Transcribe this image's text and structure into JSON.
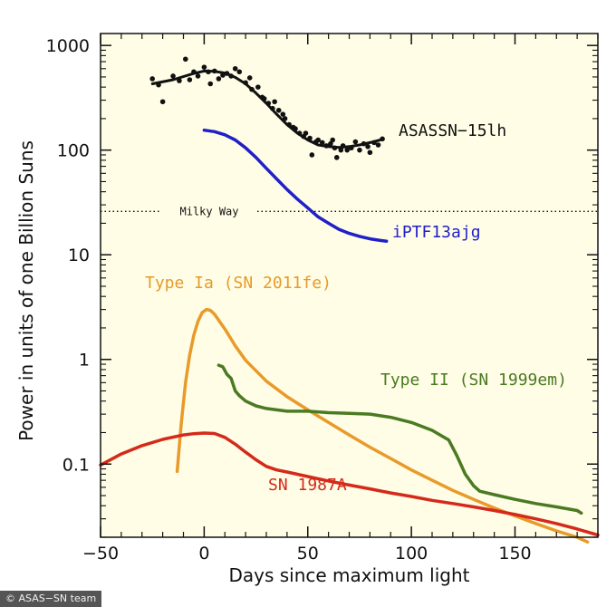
{
  "chart_data": {
    "type": "line",
    "title": "",
    "xlabel": "Days since maximum light",
    "ylabel": "Power in units of one Billion Suns",
    "xlim": [
      -50,
      190
    ],
    "ylim": [
      0.02,
      1300
    ],
    "yscale": "log",
    "grid": false,
    "background": "#fffde6",
    "x_ticks": [
      -50,
      0,
      50,
      100,
      150
    ],
    "x_tick_labels": [
      "−50",
      "0",
      "50",
      "100",
      "150"
    ],
    "y_ticks": [
      0.1,
      1,
      10,
      100,
      1000
    ],
    "y_tick_labels": [
      "0.1",
      "1",
      "10",
      "100",
      "1000"
    ],
    "series": [
      {
        "name": "ASASSN−15lh",
        "color": "#111111",
        "x": [
          -25,
          -15,
          -5,
          0,
          5,
          10,
          15,
          20,
          25,
          30,
          35,
          40,
          45,
          50,
          55,
          60,
          65,
          70,
          75,
          80,
          85
        ],
        "y": [
          430,
          470,
          540,
          570,
          565,
          545,
          495,
          430,
          350,
          280,
          220,
          175,
          145,
          125,
          112,
          108,
          106,
          108,
          112,
          118,
          125
        ],
        "points": [
          [
            -25,
            480
          ],
          [
            -22,
            420
          ],
          [
            -20,
            290
          ],
          [
            -15,
            510
          ],
          [
            -12,
            460
          ],
          [
            -9,
            740
          ],
          [
            -7,
            470
          ],
          [
            -5,
            560
          ],
          [
            -3,
            510
          ],
          [
            0,
            620
          ],
          [
            2,
            560
          ],
          [
            3,
            430
          ],
          [
            5,
            570
          ],
          [
            7,
            480
          ],
          [
            9,
            520
          ],
          [
            11,
            540
          ],
          [
            13,
            510
          ],
          [
            15,
            600
          ],
          [
            17,
            560
          ],
          [
            20,
            440
          ],
          [
            22,
            490
          ],
          [
            23,
            380
          ],
          [
            26,
            400
          ],
          [
            28,
            320
          ],
          [
            29,
            310
          ],
          [
            31,
            280
          ],
          [
            33,
            250
          ],
          [
            34,
            290
          ],
          [
            36,
            240
          ],
          [
            38,
            220
          ],
          [
            39,
            200
          ],
          [
            41,
            175
          ],
          [
            43,
            165
          ],
          [
            44,
            160
          ],
          [
            46,
            145
          ],
          [
            48,
            135
          ],
          [
            49,
            145
          ],
          [
            51,
            130
          ],
          [
            52,
            90
          ],
          [
            54,
            120
          ],
          [
            55,
            125
          ],
          [
            57,
            118
          ],
          [
            59,
            110
          ],
          [
            61,
            115
          ],
          [
            62,
            125
          ],
          [
            63,
            105
          ],
          [
            64,
            85
          ],
          [
            66,
            100
          ],
          [
            67,
            110
          ],
          [
            69,
            100
          ],
          [
            71,
            105
          ],
          [
            73,
            120
          ],
          [
            75,
            100
          ],
          [
            77,
            115
          ],
          [
            79,
            108
          ],
          [
            80,
            95
          ],
          [
            82,
            118
          ],
          [
            84,
            112
          ],
          [
            86,
            128
          ]
        ]
      },
      {
        "name": "iPTF13ajg",
        "color": "#2020c8",
        "x": [
          0,
          5,
          10,
          15,
          20,
          25,
          30,
          35,
          40,
          45,
          50,
          55,
          60,
          65,
          70,
          75,
          80,
          85,
          88
        ],
        "y": [
          155,
          150,
          140,
          125,
          105,
          85,
          67,
          53,
          42,
          34,
          28,
          23,
          20,
          17.5,
          16,
          15,
          14.2,
          13.7,
          13.5
        ]
      },
      {
        "name": "Type Ia (SN 2011fe)",
        "color": "#e89a2a",
        "x": [
          -13,
          -11,
          -9,
          -7,
          -5,
          -3,
          -1,
          1,
          3,
          5,
          10,
          15,
          20,
          30,
          40,
          50,
          60,
          70,
          80,
          90,
          100,
          110,
          120,
          130,
          140,
          150,
          160,
          170,
          180,
          185
        ],
        "y": [
          0.085,
          0.25,
          0.6,
          1.1,
          1.7,
          2.3,
          2.8,
          3.0,
          2.95,
          2.7,
          1.95,
          1.35,
          0.98,
          0.62,
          0.44,
          0.33,
          0.25,
          0.19,
          0.145,
          0.113,
          0.088,
          0.07,
          0.056,
          0.046,
          0.038,
          0.032,
          0.027,
          0.023,
          0.02,
          0.018
        ]
      },
      {
        "name": "Type II (SN 1999em)",
        "color": "#4a7a22",
        "x": [
          7,
          9,
          11,
          13,
          15,
          17,
          20,
          25,
          30,
          40,
          50,
          60,
          70,
          80,
          90,
          100,
          110,
          118,
          122,
          126,
          130,
          133,
          140,
          150,
          160,
          170,
          180,
          182
        ],
        "y": [
          0.88,
          0.85,
          0.72,
          0.66,
          0.5,
          0.45,
          0.4,
          0.36,
          0.34,
          0.32,
          0.32,
          0.31,
          0.305,
          0.3,
          0.28,
          0.25,
          0.21,
          0.17,
          0.12,
          0.08,
          0.062,
          0.055,
          0.051,
          0.046,
          0.042,
          0.039,
          0.036,
          0.034
        ]
      },
      {
        "name": "SN 1987A",
        "color": "#d42a1a",
        "x": [
          -50,
          -40,
          -30,
          -20,
          -10,
          -5,
          0,
          5,
          10,
          15,
          20,
          25,
          30,
          35,
          40,
          50,
          60,
          70,
          80,
          90,
          100,
          110,
          120,
          130,
          140,
          150,
          160,
          170,
          180,
          190
        ],
        "y": [
          0.098,
          0.125,
          0.15,
          0.172,
          0.19,
          0.195,
          0.198,
          0.196,
          0.18,
          0.155,
          0.13,
          0.11,
          0.095,
          0.088,
          0.084,
          0.076,
          0.069,
          0.063,
          0.058,
          0.053,
          0.049,
          0.045,
          0.042,
          0.039,
          0.036,
          0.033,
          0.03,
          0.027,
          0.024,
          0.021
        ]
      }
    ],
    "reference_line": {
      "label": "Milky Way",
      "y": 26,
      "style": "dotted"
    },
    "annotations": [
      {
        "text": "ASASSN−15lh",
        "series": 0,
        "color": "#111111"
      },
      {
        "text": "iPTF13ajg",
        "series": 1,
        "color": "#2020c8"
      },
      {
        "text": "Type Ia (SN 2011fe)",
        "series": 2,
        "color": "#e89a2a"
      },
      {
        "text": "Type II (SN 1999em)",
        "series": 3,
        "color": "#4a7a22"
      },
      {
        "text": "SN 1987A",
        "series": 4,
        "color": "#d42a1a"
      }
    ]
  },
  "credit": "© ASAS−SN team"
}
